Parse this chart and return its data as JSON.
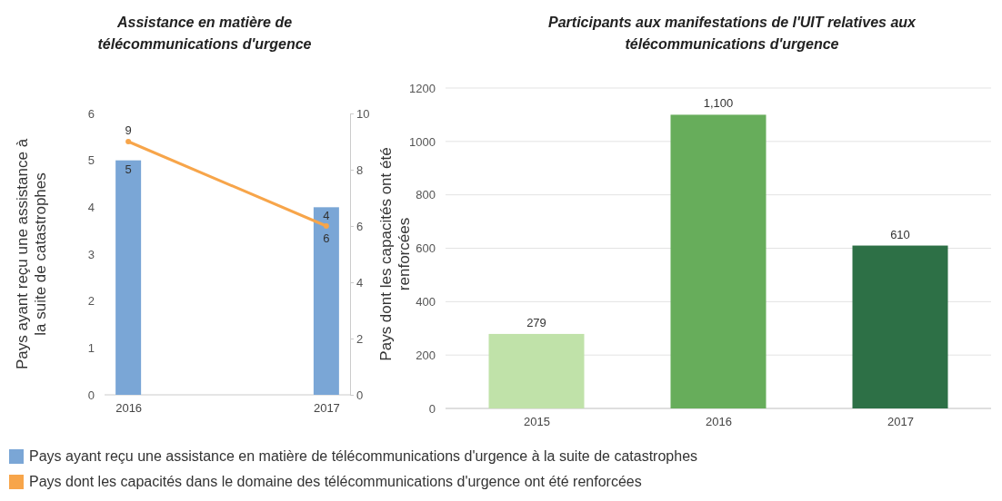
{
  "chart_data": [
    {
      "type": "bar",
      "title": "Assistance en matière de\ntélécommunications d'urgence",
      "ylabel": "Pays ayant reçu une assistance à\nla suite de catastrophes",
      "y2label": "Pays dont les capacités ont été\nrenforcées",
      "categories": [
        "2016",
        "2017"
      ],
      "ylim": [
        0,
        6
      ],
      "yticks": [
        0,
        1,
        2,
        3,
        4,
        5,
        6
      ],
      "y2lim": [
        0,
        10
      ],
      "y2ticks": [
        0,
        2,
        4,
        6,
        8,
        10
      ],
      "data_labels": true,
      "legend": "bottom",
      "grid": false,
      "series": [
        {
          "name": "Pays ayant reçu une assistance en matière de télécommunications d'urgence à la suite de catastrophes",
          "type": "bar",
          "color": "#7aa6d6",
          "values": [
            5,
            4
          ]
        },
        {
          "name": "Pays dont les capacités dans le domaine des télécommunications d'urgence ont été renforcées",
          "type": "line",
          "axis": "y2",
          "marker": "circle",
          "color": "#f7a54a",
          "values": [
            9,
            6
          ]
        }
      ]
    },
    {
      "type": "bar",
      "title": "Participants aux manifestations de l'UIT relatives aux\ntélécommunications d'urgence",
      "categories": [
        "2015",
        "2016",
        "2017"
      ],
      "ylim": [
        0,
        1200
      ],
      "yticks": [
        0,
        200,
        400,
        600,
        800,
        1000,
        1200
      ],
      "grid": "y",
      "values": [
        279,
        1100,
        610
      ],
      "colors": [
        "#c0e2a9",
        "#67ad5b",
        "#2d7046"
      ],
      "value_labels": [
        "279",
        "1,100",
        "610"
      ]
    }
  ]
}
